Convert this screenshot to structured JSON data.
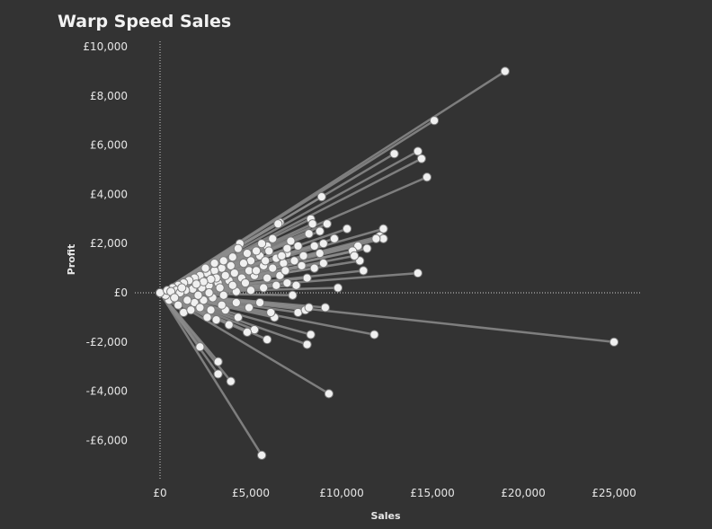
{
  "chart_data": {
    "type": "scatter",
    "title": "Warp Speed Sales",
    "xlabel": "Sales",
    "ylabel": "Profit",
    "xlim": [
      0,
      26500
    ],
    "ylim": [
      -7300,
      10300
    ],
    "x_ticks": [
      {
        "v": 0,
        "label": "£0"
      },
      {
        "v": 5000,
        "label": "£5,000"
      },
      {
        "v": 10000,
        "label": "£10,000"
      },
      {
        "v": 15000,
        "label": "£15,000"
      },
      {
        "v": 20000,
        "label": "£20,000"
      },
      {
        "v": 25000,
        "label": "£25,000"
      }
    ],
    "y_ticks": [
      {
        "v": 10000,
        "label": "£10,000"
      },
      {
        "v": 8000,
        "label": "£8,000"
      },
      {
        "v": 6000,
        "label": "£6,000"
      },
      {
        "v": 4000,
        "label": "£4,000"
      },
      {
        "v": 2000,
        "label": "£2,000"
      },
      {
        "v": 0,
        "label": "£0"
      },
      {
        "v": -2000,
        "label": "-£2,000"
      },
      {
        "v": -4000,
        "label": "-£4,000"
      },
      {
        "v": -6000,
        "label": "-£6,000"
      }
    ],
    "lines_from_origin": true,
    "zero_lines": "dotted",
    "colors": {
      "background": "#333333",
      "line": "#8c8c8c",
      "point": "#f0f0f0",
      "point_stroke": "#7a7a7a",
      "text": "#e6e6e6"
    },
    "points": [
      [
        19000,
        9000
      ],
      [
        15100,
        7000
      ],
      [
        25000,
        -2000
      ],
      [
        5600,
        -6600
      ],
      [
        9300,
        -4100
      ],
      [
        14200,
        5750
      ],
      [
        14400,
        5450
      ],
      [
        12900,
        5650
      ],
      [
        14700,
        4700
      ],
      [
        8900,
        3900
      ],
      [
        14200,
        800
      ],
      [
        11800,
        -1700
      ],
      [
        3200,
        -3300
      ],
      [
        3900,
        -3600
      ],
      [
        3200,
        -2800
      ],
      [
        2200,
        -2200
      ],
      [
        8300,
        -1700
      ],
      [
        8100,
        -2100
      ],
      [
        5900,
        -1900
      ],
      [
        9100,
        -600
      ],
      [
        9800,
        200
      ],
      [
        12300,
        2600
      ],
      [
        12100,
        2300
      ],
      [
        12300,
        2200
      ],
      [
        11900,
        2200
      ],
      [
        11400,
        1800
      ],
      [
        11000,
        1300
      ],
      [
        11200,
        900
      ],
      [
        10300,
        2600
      ],
      [
        9200,
        2800
      ],
      [
        8300,
        3000
      ],
      [
        8400,
        2800
      ],
      [
        6600,
        2850
      ],
      [
        6500,
        2800
      ],
      [
        8800,
        2500
      ],
      [
        8200,
        2400
      ],
      [
        9600,
        2200
      ],
      [
        10900,
        1900
      ],
      [
        10600,
        1700
      ],
      [
        10700,
        1500
      ],
      [
        8800,
        1600
      ],
      [
        9000,
        1200
      ],
      [
        8500,
        1000
      ],
      [
        8100,
        600
      ],
      [
        7500,
        300
      ],
      [
        7300,
        -100
      ],
      [
        7600,
        -800
      ],
      [
        6300,
        -1000
      ],
      [
        5200,
        -1500
      ],
      [
        4800,
        -1600
      ],
      [
        3800,
        -1300
      ],
      [
        4300,
        -1000
      ],
      [
        3600,
        -700
      ],
      [
        6100,
        -800
      ],
      [
        8000,
        -700
      ],
      [
        8200,
        -600
      ],
      [
        3100,
        -1100
      ],
      [
        2600,
        -1000
      ],
      [
        1300,
        -800
      ],
      [
        1000,
        -500
      ],
      [
        500,
        -300
      ],
      [
        300,
        -100
      ],
      [
        0,
        0
      ],
      [
        4400,
        2000
      ],
      [
        4300,
        1800
      ],
      [
        5900,
        1900
      ],
      [
        6000,
        1700
      ],
      [
        7200,
        2100
      ],
      [
        7600,
        1900
      ],
      [
        7000,
        1600
      ],
      [
        6400,
        1400
      ],
      [
        5500,
        1500
      ],
      [
        5000,
        1300
      ],
      [
        4600,
        1200
      ],
      [
        3900,
        1100
      ],
      [
        3400,
        1000
      ],
      [
        3000,
        900
      ],
      [
        2600,
        800
      ],
      [
        2200,
        700
      ],
      [
        1900,
        600
      ],
      [
        1600,
        500
      ],
      [
        1300,
        400
      ],
      [
        1000,
        300
      ],
      [
        700,
        200
      ],
      [
        400,
        100
      ],
      [
        5700,
        1100
      ],
      [
        6200,
        1000
      ],
      [
        6800,
        1200
      ],
      [
        7400,
        1300
      ],
      [
        7800,
        1100
      ],
      [
        6600,
        700
      ],
      [
        5900,
        600
      ],
      [
        5200,
        700
      ],
      [
        4500,
        600
      ],
      [
        3800,
        500
      ],
      [
        3200,
        400
      ],
      [
        2700,
        300
      ],
      [
        2300,
        200
      ],
      [
        1800,
        150
      ],
      [
        1400,
        100
      ],
      [
        7000,
        400
      ],
      [
        6400,
        300
      ],
      [
        5700,
        200
      ],
      [
        5000,
        100
      ],
      [
        4200,
        50
      ],
      [
        3500,
        -100
      ],
      [
        2900,
        -200
      ],
      [
        2400,
        -300
      ],
      [
        1900,
        -400
      ],
      [
        1500,
        -300
      ],
      [
        4900,
        900
      ],
      [
        4100,
        800
      ],
      [
        3600,
        700
      ],
      [
        3100,
        600
      ],
      [
        2800,
        550
      ],
      [
        2400,
        450
      ],
      [
        2000,
        350
      ],
      [
        5300,
        1700
      ],
      [
        4800,
        1600
      ],
      [
        4000,
        1450
      ],
      [
        3500,
        1300
      ],
      [
        3000,
        1200
      ],
      [
        2500,
        1000
      ],
      [
        6200,
        2200
      ],
      [
        5600,
        2000
      ],
      [
        7000,
        1800
      ],
      [
        6700,
        1500
      ],
      [
        5300,
        900
      ],
      [
        4700,
        400
      ],
      [
        4000,
        300
      ],
      [
        3300,
        200
      ],
      [
        2700,
        0
      ],
      [
        2100,
        -100
      ],
      [
        5500,
        -400
      ],
      [
        4900,
        -600
      ],
      [
        4200,
        -400
      ],
      [
        3400,
        -500
      ],
      [
        2800,
        -700
      ],
      [
        2200,
        -600
      ],
      [
        1700,
        -700
      ],
      [
        900,
        100
      ],
      [
        1100,
        0
      ],
      [
        600,
        50
      ],
      [
        800,
        -200
      ],
      [
        1200,
        200
      ],
      [
        9000,
        2000
      ],
      [
        8500,
        1900
      ],
      [
        7900,
        1500
      ],
      [
        5800,
        1300
      ],
      [
        6900,
        900
      ]
    ]
  }
}
